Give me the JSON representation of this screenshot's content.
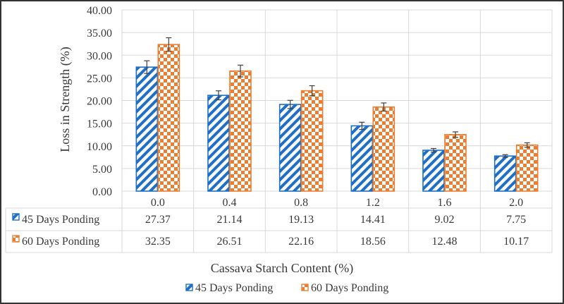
{
  "chart_data": {
    "type": "bar",
    "title": "",
    "xlabel": "Cassava Starch Content (%)",
    "ylabel": "Loss in Strength (%)",
    "ylim": [
      0,
      40
    ],
    "ytick_step": 5,
    "ytick_labels": [
      "0.00",
      "5.00",
      "10.00",
      "15.00",
      "20.00",
      "25.00",
      "30.00",
      "35.00",
      "40.00"
    ],
    "categories": [
      "0.0",
      "0.4",
      "0.8",
      "1.2",
      "1.6",
      "2.0"
    ],
    "grid": true,
    "legend_position": "bottom-center",
    "data_table": true,
    "series": [
      {
        "name": "45 Days Ponding",
        "values": [
          27.37,
          21.14,
          19.13,
          14.41,
          9.02,
          7.75
        ],
        "value_labels": [
          "27.37",
          "21.14",
          "19.13",
          "14.41",
          "9.02",
          "7.75"
        ],
        "error": [
          1.4,
          1.0,
          0.9,
          0.8,
          0.4,
          0.3
        ],
        "pattern": "diagonal-stripes",
        "color": "#1f6fc5"
      },
      {
        "name": "60 Days Ponding",
        "values": [
          32.35,
          26.51,
          22.16,
          18.56,
          12.48,
          10.17
        ],
        "value_labels": [
          "32.35",
          "26.51",
          "22.16",
          "18.56",
          "12.48",
          "10.17"
        ],
        "error": [
          1.5,
          1.3,
          1.1,
          0.9,
          0.6,
          0.5
        ],
        "pattern": "checkerboard",
        "color": "#ed7d31"
      }
    ]
  }
}
